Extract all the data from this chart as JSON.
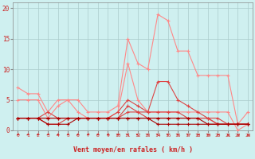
{
  "xlabel": "Vent moyen/en rafales ( km/h )",
  "bg_color": "#cff0f0",
  "grid_color": "#aacccc",
  "x_ticks": [
    0,
    1,
    2,
    3,
    4,
    5,
    6,
    7,
    8,
    9,
    10,
    11,
    12,
    13,
    14,
    15,
    16,
    17,
    18,
    19,
    20,
    21,
    22,
    23
  ],
  "y_ticks": [
    0,
    5,
    10,
    15,
    20
  ],
  "xlim": [
    -0.5,
    23.5
  ],
  "ylim": [
    0,
    21
  ],
  "series": [
    {
      "color": "#ff8888",
      "lw": 0.8,
      "marker": "+",
      "ms": 3,
      "mew": 0.8,
      "x": [
        0,
        1,
        2,
        3,
        4,
        5,
        6,
        7,
        8,
        9,
        10,
        11,
        12,
        13,
        14,
        15,
        16,
        17,
        18,
        19,
        20,
        21,
        22,
        23
      ],
      "y": [
        7,
        6,
        6,
        3,
        5,
        5,
        5,
        3,
        3,
        3,
        4,
        15,
        11,
        10,
        19,
        18,
        13,
        13,
        9,
        9,
        9,
        9,
        1,
        3
      ]
    },
    {
      "color": "#ff8888",
      "lw": 0.8,
      "marker": "+",
      "ms": 3,
      "mew": 0.8,
      "x": [
        0,
        1,
        2,
        3,
        4,
        5,
        6,
        7,
        8,
        9,
        10,
        11,
        12,
        13,
        14,
        15,
        16,
        17,
        18,
        19,
        20,
        21,
        22,
        23
      ],
      "y": [
        5,
        5,
        5,
        2,
        4,
        5,
        3,
        2,
        2,
        2,
        3,
        11,
        5,
        3,
        3,
        3,
        3,
        3,
        3,
        3,
        3,
        3,
        0,
        1
      ]
    },
    {
      "color": "#dd4444",
      "lw": 0.8,
      "marker": "+",
      "ms": 3,
      "mew": 0.8,
      "x": [
        0,
        1,
        2,
        3,
        4,
        5,
        6,
        7,
        8,
        9,
        10,
        11,
        12,
        13,
        14,
        15,
        16,
        17,
        18,
        19,
        20,
        21,
        22,
        23
      ],
      "y": [
        2,
        2,
        2,
        3,
        2,
        2,
        2,
        2,
        2,
        2,
        3,
        5,
        4,
        3,
        8,
        8,
        5,
        4,
        3,
        2,
        1,
        1,
        1,
        1
      ]
    },
    {
      "color": "#dd4444",
      "lw": 0.8,
      "marker": "+",
      "ms": 3,
      "mew": 0.8,
      "x": [
        0,
        1,
        2,
        3,
        4,
        5,
        6,
        7,
        8,
        9,
        10,
        11,
        12,
        13,
        14,
        15,
        16,
        17,
        18,
        19,
        20,
        21,
        22,
        23
      ],
      "y": [
        2,
        2,
        2,
        1,
        1,
        2,
        2,
        2,
        2,
        2,
        2,
        4,
        3,
        3,
        3,
        3,
        3,
        2,
        2,
        2,
        1,
        1,
        1,
        1
      ]
    },
    {
      "color": "#dd4444",
      "lw": 0.8,
      "marker": "+",
      "ms": 3,
      "mew": 0.8,
      "x": [
        0,
        1,
        2,
        3,
        4,
        5,
        6,
        7,
        8,
        9,
        10,
        11,
        12,
        13,
        14,
        15,
        16,
        17,
        18,
        19,
        20,
        21,
        22,
        23
      ],
      "y": [
        2,
        2,
        2,
        2,
        2,
        2,
        2,
        2,
        2,
        2,
        2,
        3,
        3,
        2,
        2,
        2,
        2,
        2,
        2,
        2,
        2,
        1,
        1,
        1
      ]
    },
    {
      "color": "#aa0000",
      "lw": 0.8,
      "marker": "+",
      "ms": 3,
      "mew": 0.8,
      "x": [
        0,
        1,
        2,
        3,
        4,
        5,
        6,
        7,
        8,
        9,
        10,
        11,
        12,
        13,
        14,
        15,
        16,
        17,
        18,
        19,
        20,
        21,
        22,
        23
      ],
      "y": [
        2,
        2,
        2,
        2,
        2,
        2,
        2,
        2,
        2,
        2,
        2,
        2,
        2,
        2,
        2,
        2,
        2,
        2,
        2,
        1,
        1,
        1,
        1,
        1
      ]
    },
    {
      "color": "#aa0000",
      "lw": 0.8,
      "marker": "+",
      "ms": 3,
      "mew": 0.8,
      "x": [
        0,
        1,
        2,
        3,
        4,
        5,
        6,
        7,
        8,
        9,
        10,
        11,
        12,
        13,
        14,
        15,
        16,
        17,
        18,
        19,
        20,
        21,
        22,
        23
      ],
      "y": [
        2,
        2,
        2,
        1,
        1,
        1,
        2,
        2,
        2,
        2,
        2,
        2,
        2,
        2,
        1,
        1,
        1,
        1,
        1,
        1,
        1,
        1,
        1,
        1
      ]
    }
  ],
  "wind_arrows": {
    "color": "#cc2222",
    "x": [
      0,
      1,
      2,
      3,
      4,
      5,
      6,
      7,
      8,
      9,
      10,
      11,
      12,
      13,
      14,
      15,
      16,
      17,
      18,
      19,
      20,
      21,
      22,
      23
    ],
    "angles_deg": [
      225,
      225,
      225,
      225,
      225,
      225,
      225,
      225,
      225,
      225,
      225,
      270,
      270,
      280,
      290,
      300,
      310,
      320,
      330,
      330,
      335,
      340,
      340,
      345
    ]
  }
}
